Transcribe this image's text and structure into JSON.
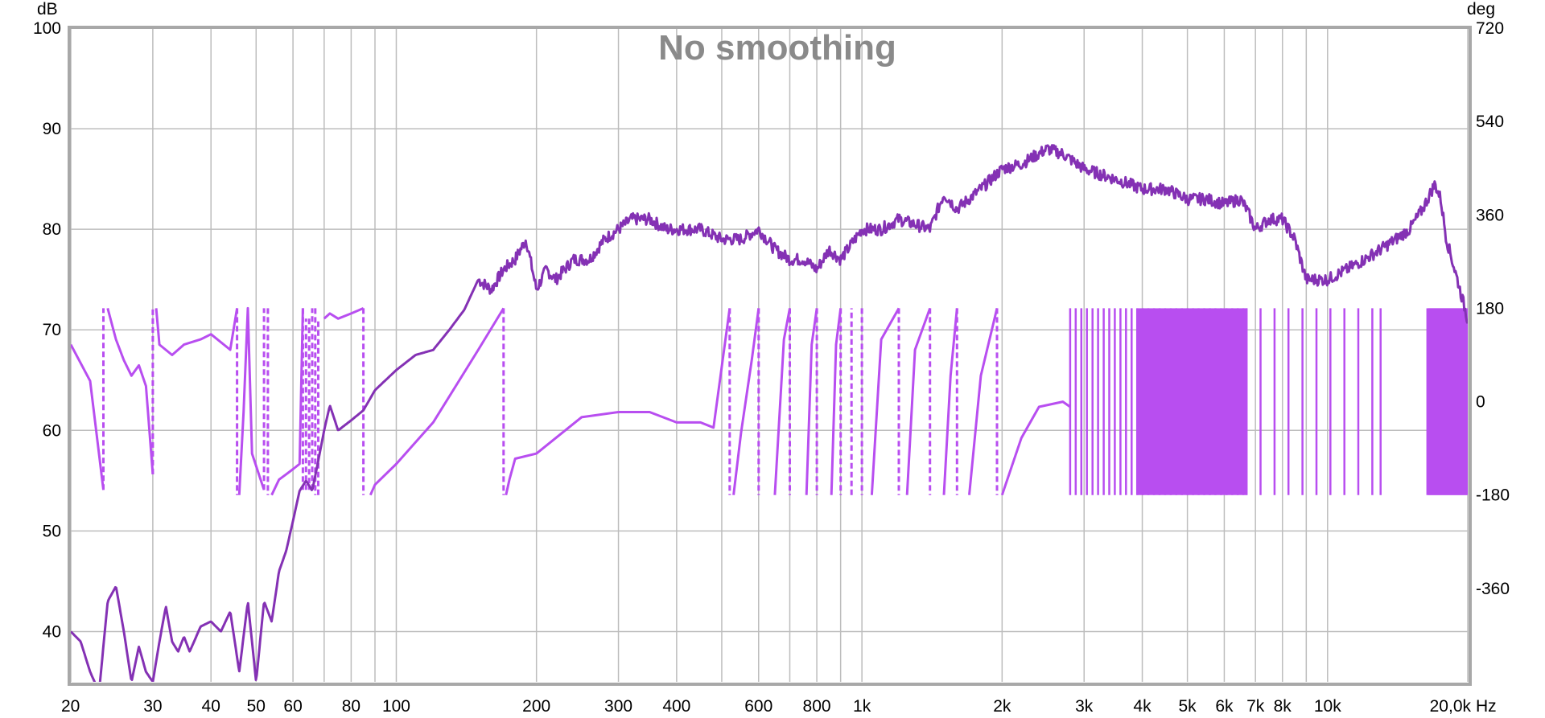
{
  "chart_data": {
    "type": "line",
    "title": "No smoothing",
    "left_axis": {
      "unit": "dB",
      "ylim": [
        35,
        100
      ],
      "ticks": [
        40,
        50,
        60,
        70,
        80,
        90,
        100
      ],
      "tick_labels": [
        "40",
        "50",
        "60",
        "70",
        "80",
        "90",
        "100"
      ]
    },
    "right_axis": {
      "unit": "deg",
      "ylim": [
        -540,
        720
      ],
      "ticks": [
        -360,
        -180,
        0,
        180,
        360,
        540,
        720
      ],
      "tick_labels": [
        "-360",
        "-180",
        "0",
        "180",
        "360",
        "540",
        "720"
      ]
    },
    "x_axis": {
      "unit": "Hz",
      "scale": "log",
      "xlim": [
        20,
        20000
      ],
      "labeled_ticks": [
        20,
        30,
        40,
        50,
        60,
        80,
        100,
        200,
        300,
        400,
        600,
        800,
        1000,
        2000,
        3000,
        4000,
        5000,
        6000,
        7000,
        8000,
        10000,
        20000
      ],
      "tick_labels": [
        "20",
        "30",
        "40",
        "50",
        "60",
        "80",
        "100",
        "200",
        "300",
        "400",
        "600",
        "800",
        "1k",
        "2k",
        "3k",
        "4k",
        "5k",
        "6k",
        "7k",
        "8k",
        "10k",
        "20,0k"
      ],
      "grid_lines": [
        20,
        30,
        40,
        50,
        60,
        70,
        80,
        90,
        100,
        200,
        300,
        400,
        500,
        600,
        700,
        800,
        900,
        1000,
        2000,
        3000,
        4000,
        5000,
        6000,
        7000,
        8000,
        9000,
        10000,
        20000
      ]
    },
    "grid": true,
    "colors": {
      "magnitude": "#8431b4",
      "phase": "#b84ef0",
      "grid": "#bdbdbd",
      "frame": "#a8a8a8"
    },
    "series": [
      {
        "axis": "left",
        "x": [
          20,
          21,
          22,
          23,
          24,
          25,
          26,
          27,
          28,
          29,
          30,
          31,
          32,
          33,
          34,
          35,
          36,
          38,
          40,
          42,
          44,
          46,
          48,
          50,
          52,
          54,
          56,
          58,
          60,
          62,
          64,
          66,
          68,
          70,
          72,
          75,
          80,
          85,
          90,
          100,
          110,
          120,
          130,
          140,
          150,
          160,
          170,
          180,
          190,
          200,
          210,
          220,
          240,
          260,
          280,
          300,
          320,
          350,
          380,
          400,
          450,
          500,
          550,
          600,
          650,
          700,
          750,
          800,
          850,
          900,
          1000,
          1100,
          1200,
          1400,
          1500,
          1600,
          1800,
          2000,
          2200,
          2500,
          2700,
          3000,
          3500,
          4000,
          4500,
          5000,
          5500,
          6000,
          6500,
          6700,
          7000,
          7500,
          8000,
          8500,
          9000,
          10000,
          11000,
          12000,
          13000,
          14000,
          15000,
          16000,
          17000,
          17500,
          18000,
          19000,
          20000
        ],
        "y": [
          40,
          39,
          36,
          34,
          43,
          44.5,
          40,
          35,
          38.5,
          36,
          35,
          39,
          42.5,
          39,
          38,
          39.5,
          38,
          40.5,
          41,
          40,
          42,
          36,
          43,
          35,
          43,
          41,
          46,
          48,
          51,
          54,
          55,
          54,
          57,
          60,
          62.5,
          60,
          61,
          62,
          64,
          66,
          67.5,
          68,
          70,
          72,
          75,
          74,
          76,
          77,
          79,
          74,
          76,
          75,
          77,
          77,
          79,
          80,
          81,
          81,
          80,
          80,
          80,
          79,
          79,
          80,
          78,
          77,
          77,
          76,
          78,
          77,
          80,
          80,
          81,
          80,
          83.5,
          82,
          84,
          86,
          86.5,
          88,
          87.5,
          86,
          85,
          84,
          84,
          83,
          83,
          82.5,
          83,
          82,
          80,
          81,
          81,
          79,
          75,
          75,
          76,
          77,
          78,
          79,
          80,
          82,
          84.5,
          83,
          79,
          75,
          71
        ]
      },
      {
        "axis": "right",
        "x": [
          20,
          22,
          23.5,
          24,
          25,
          26,
          27,
          28,
          29,
          30,
          30.5,
          31,
          33,
          35,
          38,
          40,
          44,
          45.5,
          46,
          47,
          48,
          49,
          52,
          53,
          54,
          56,
          58,
          60,
          62,
          63,
          64,
          65,
          66,
          67,
          68,
          70,
          72,
          75,
          80,
          85,
          88,
          90,
          100,
          120,
          150,
          170,
          172,
          175,
          180,
          200,
          250,
          300,
          350,
          400,
          450,
          480,
          520,
          530,
          550,
          580,
          600,
          650,
          680,
          700,
          760,
          780,
          800,
          860,
          880,
          900,
          950,
          1000,
          1050,
          1100,
          1200,
          1250,
          1300,
          1400,
          1500,
          1550,
          1600,
          1700,
          1800,
          1950,
          2000,
          2200,
          2400,
          2700,
          2800
        ],
        "y": [
          110,
          40,
          -170,
          180,
          120,
          80,
          50,
          70,
          30,
          -140,
          180,
          110,
          90,
          110,
          120,
          130,
          100,
          180,
          -180,
          -20,
          180,
          -100,
          -170,
          180,
          -180,
          -150,
          -140,
          -130,
          -120,
          180,
          -170,
          160,
          -170,
          180,
          -180,
          160,
          170,
          160,
          170,
          180,
          -180,
          -160,
          -120,
          -40,
          100,
          180,
          -180,
          -150,
          -110,
          -100,
          -30,
          -20,
          -20,
          -40,
          -40,
          -50,
          180,
          -180,
          -60,
          80,
          180,
          -180,
          120,
          180,
          -180,
          110,
          180,
          -180,
          110,
          180,
          -180,
          180,
          -180,
          120,
          180,
          -180,
          100,
          180,
          -180,
          50,
          180,
          -180,
          50,
          180,
          -180,
          -70,
          -10,
          0,
          -10
        ]
      }
    ]
  }
}
